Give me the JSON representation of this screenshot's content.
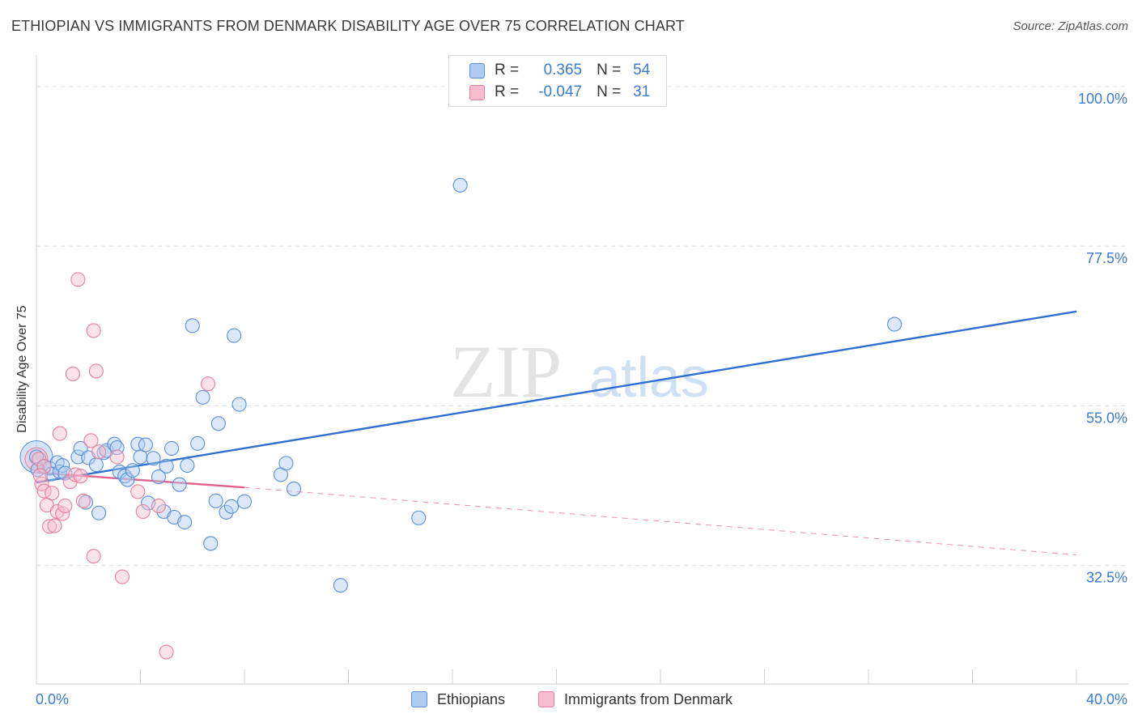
{
  "header": {
    "title": "ETHIOPIAN VS IMMIGRANTS FROM DENMARK DISABILITY AGE OVER 75 CORRELATION CHART",
    "source": "Source: ZipAtlas.com"
  },
  "watermark": {
    "zip": "ZIP",
    "atlas": "atlas"
  },
  "legend": {
    "r_label": "R =",
    "n_label": "N =",
    "rows": [
      {
        "r": "0.365",
        "n": "54"
      },
      {
        "r": "-0.047",
        "n": "31"
      }
    ]
  },
  "colors": {
    "blue_fill": "#aecbf2",
    "blue_stroke": "#5b8fd8",
    "blue_line": "#2f6fd0",
    "pink_fill": "#f6bccd",
    "pink_stroke": "#e4819f",
    "pink_line": "#e0628e",
    "axis_label": "#3a7bd5"
  },
  "chart_data": {
    "type": "scatter",
    "title": "ETHIOPIAN VS IMMIGRANTS FROM DENMARK DISABILITY AGE OVER 75 CORRELATION CHART",
    "xlabel": "",
    "ylabel": "Disability Age Over 75",
    "xlim": [
      0,
      40
    ],
    "ylim": [
      15.8,
      103.3
    ],
    "x_tick_labels": [
      "0.0%",
      "40.0%"
    ],
    "y_ticks": [
      32.5,
      55.0,
      77.5,
      100.0
    ],
    "y_tick_labels": [
      "32.5%",
      "55.0%",
      "77.5%",
      "100.0%"
    ],
    "series": [
      {
        "name": "Ethiopians",
        "r": 0.365,
        "n": 54,
        "points": [
          [
            0.0,
            47.8
          ],
          [
            0.3,
            46.4
          ],
          [
            0.5,
            46.2
          ],
          [
            0.6,
            45.4
          ],
          [
            0.8,
            47.0
          ],
          [
            0.9,
            45.7
          ],
          [
            1.0,
            46.6
          ],
          [
            1.1,
            45.5
          ],
          [
            1.6,
            47.8
          ],
          [
            1.7,
            49.0
          ],
          [
            1.9,
            41.4
          ],
          [
            2.0,
            47.7
          ],
          [
            2.3,
            46.7
          ],
          [
            2.4,
            39.9
          ],
          [
            2.6,
            48.4
          ],
          [
            2.7,
            48.7
          ],
          [
            3.0,
            49.6
          ],
          [
            3.1,
            49.1
          ],
          [
            3.2,
            45.7
          ],
          [
            3.4,
            45.1
          ],
          [
            3.5,
            44.6
          ],
          [
            3.7,
            45.9
          ],
          [
            3.9,
            49.6
          ],
          [
            4.0,
            47.8
          ],
          [
            4.2,
            49.5
          ],
          [
            4.3,
            41.3
          ],
          [
            4.5,
            47.6
          ],
          [
            4.7,
            45.0
          ],
          [
            4.9,
            40.1
          ],
          [
            5.0,
            46.5
          ],
          [
            5.2,
            49.0
          ],
          [
            5.3,
            39.3
          ],
          [
            5.5,
            43.9
          ],
          [
            5.7,
            38.6
          ],
          [
            5.8,
            46.6
          ],
          [
            6.0,
            66.3
          ],
          [
            6.2,
            49.7
          ],
          [
            6.4,
            56.2
          ],
          [
            6.7,
            35.6
          ],
          [
            6.9,
            41.6
          ],
          [
            7.0,
            52.5
          ],
          [
            7.3,
            40.0
          ],
          [
            7.5,
            40.8
          ],
          [
            7.6,
            64.9
          ],
          [
            7.8,
            55.2
          ],
          [
            8.0,
            41.5
          ],
          [
            9.4,
            45.3
          ],
          [
            9.6,
            46.9
          ],
          [
            9.9,
            43.3
          ],
          [
            11.7,
            29.7
          ],
          [
            14.7,
            39.2
          ],
          [
            16.3,
            86.1
          ],
          [
            33.0,
            66.5
          ],
          [
            0.05,
            46.0
          ]
        ]
      },
      {
        "name": "Immigrants from Denmark",
        "r": -0.047,
        "n": 31,
        "points": [
          [
            0.1,
            47.5
          ],
          [
            0.2,
            44.0
          ],
          [
            0.3,
            43.0
          ],
          [
            0.4,
            41.0
          ],
          [
            0.5,
            38.0
          ],
          [
            0.6,
            42.7
          ],
          [
            0.7,
            38.1
          ],
          [
            0.8,
            40.1
          ],
          [
            0.9,
            51.1
          ],
          [
            1.0,
            39.8
          ],
          [
            1.1,
            40.9
          ],
          [
            1.3,
            44.3
          ],
          [
            1.4,
            59.5
          ],
          [
            1.5,
            45.3
          ],
          [
            1.6,
            72.8
          ],
          [
            1.7,
            45.1
          ],
          [
            1.8,
            41.6
          ],
          [
            2.1,
            50.1
          ],
          [
            2.2,
            33.8
          ],
          [
            2.2,
            65.6
          ],
          [
            2.3,
            59.9
          ],
          [
            2.4,
            48.5
          ],
          [
            3.1,
            47.8
          ],
          [
            3.3,
            30.9
          ],
          [
            3.9,
            42.9
          ],
          [
            4.1,
            40.1
          ],
          [
            4.7,
            40.9
          ],
          [
            5.0,
            20.3
          ],
          [
            6.6,
            58.1
          ],
          [
            0.3,
            46.5
          ],
          [
            0.15,
            45.2
          ]
        ]
      }
    ],
    "trend_lines": [
      {
        "series": "Ethiopians",
        "x": [
          0,
          40
        ],
        "y": [
          44.2,
          68.3
        ],
        "style": "solid"
      },
      {
        "series": "Immigrants from Denmark",
        "x": [
          0,
          8
        ],
        "y": [
          45.6,
          43.5
        ],
        "style": "solid"
      },
      {
        "series": "Immigrants from Denmark",
        "x": [
          8,
          40
        ],
        "y": [
          43.5,
          34.0
        ],
        "style": "dashed"
      }
    ]
  },
  "bottom_legend": {
    "items": [
      "Ethiopians",
      "Immigrants from Denmark"
    ]
  }
}
